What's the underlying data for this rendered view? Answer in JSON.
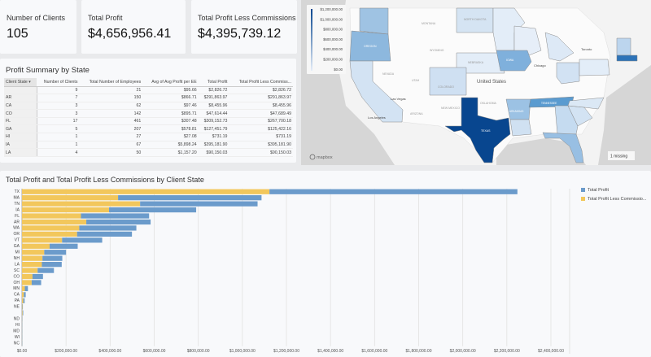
{
  "kpis": [
    {
      "label": "Number of Clients",
      "value": "105"
    },
    {
      "label": "Total Profit",
      "value": "$4,656,956.41"
    },
    {
      "label": "Total Profit Less Commissions",
      "value": "$4,395,739.12"
    }
  ],
  "table": {
    "title": "Profit Summary by State",
    "columns": [
      "Client State ▾",
      "Number of Clients",
      "Total Number of Employees",
      "Avg of Avg Profit per EE",
      "Total Profit",
      "Total Profit Less Commiss..."
    ],
    "rows": [
      [
        "",
        "9",
        "21",
        "$95.66",
        "$2,826.72",
        "$2,826.72"
      ],
      [
        "AR",
        "7",
        "150",
        "$866.71",
        "$291,863.97",
        "$291,863.97"
      ],
      [
        "CA",
        "3",
        "62",
        "$97.46",
        "$8,455.96",
        "$8,455.96"
      ],
      [
        "CO",
        "3",
        "142",
        "$895.71",
        "$47,614.44",
        "$47,689.49"
      ],
      [
        "FL",
        "17",
        "461",
        "$307.48",
        "$309,152.73",
        "$267,700.18"
      ],
      [
        "GA",
        "5",
        "207",
        "$578.81",
        "$127,451.79",
        "$125,422.16"
      ],
      [
        "HI",
        "1",
        "27",
        "$27.08",
        "$731.19",
        "$731.19"
      ],
      [
        "IA",
        "1",
        "67",
        "$5,898.24",
        "$395,181.90",
        "$395,181.90"
      ],
      [
        "LA",
        "4",
        "50",
        "$1,157.20",
        "$90,150.03",
        "$90,150.03"
      ]
    ]
  },
  "map": {
    "legend_ticks": [
      "$1,200,000.00",
      "$1,000,000.00",
      "$800,000.00",
      "$600,000.00",
      "$400,000.00",
      "$200,000.00",
      "$0.00"
    ],
    "country_label": "United States",
    "state_labels": {
      "TX": "TEXAS",
      "IA": "IOWA",
      "OR": "OREGON",
      "CO": "COLORADO",
      "NE": "NEBRASKA",
      "ND": "NORTH DAKOTA",
      "MT": "MONTANA",
      "WY": "WYOMING",
      "NV": "NEVADA",
      "UT": "UTAH",
      "AZ": "ARIZONA",
      "NM": "NEW MEXICO",
      "OK": "OKLAHOMA",
      "TN": "TENNESSEE",
      "AR": "ARKANSAS"
    },
    "city_labels": [
      "Las Vegas",
      "Los Angeles",
      "Chicago",
      "Toronto"
    ],
    "missing_badge": "1 missing",
    "attribution": "mapbox",
    "colors": {
      "low": "#e6eef8",
      "high": "#08468f",
      "water": "#d6d6d6"
    }
  },
  "chart_data": {
    "type": "bar",
    "orientation": "horizontal",
    "stacked": true,
    "title": "Total Profit and Total Profit Less Commissions by Client State",
    "categories": [
      "TX",
      "MA",
      "TN",
      "IA",
      "FL",
      "AR",
      "WA",
      "OR",
      "VT",
      "GA",
      "MI",
      "NH",
      "LA",
      "SC",
      "CO",
      "OH",
      "MN",
      "CA",
      "PA",
      "NE",
      "",
      "ND",
      "HI",
      "MD",
      "WI",
      "NC"
    ],
    "series": [
      {
        "name": "Total Profit",
        "color": "#6b9bcb",
        "values": [
          1125000,
          651000,
          533000,
          395181.9,
          309152.73,
          291863.97,
          259000,
          249000,
          182000,
          127451.79,
          99000,
          90000,
          90150.03,
          74000,
          47614.44,
          43000,
          14000,
          8455.96,
          6000,
          2000,
          2826.72,
          1000,
          731.19,
          300,
          200,
          150
        ]
      },
      {
        "name": "Total Profit Less Commissio...",
        "color": "#f2c75c",
        "values": [
          1123000,
          436000,
          536000,
          395181.9,
          267700.18,
          291863.97,
          260000,
          250000,
          182000,
          125422.16,
          101000,
          93000,
          90150.03,
          71000,
          47689.49,
          44000,
          13000,
          8455.96,
          6000,
          2000,
          2826.72,
          1000,
          731.19,
          300,
          200,
          150
        ]
      }
    ],
    "xlim": [
      0,
      2400000
    ],
    "xticks": [
      "$0.00",
      "$200,000.00",
      "$400,000.00",
      "$600,000.00",
      "$800,000.00",
      "$1,000,000.00",
      "$1,200,000.00",
      "$1,400,000.00",
      "$1,600,000.00",
      "$1,800,000.00",
      "$2,000,000.00",
      "$2,200,000.00",
      "$2,400,000.00"
    ],
    "grid": true,
    "legend": "top-right"
  }
}
